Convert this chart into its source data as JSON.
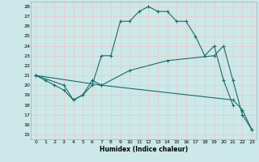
{
  "xlabel": "Humidex (Indice chaleur)",
  "bg_color": "#cce8e8",
  "grid_color": "#b0d8d8",
  "line_color": "#1a6b6b",
  "xlim": [
    -0.5,
    23.5
  ],
  "ylim": [
    14.5,
    28.5
  ],
  "xticks": [
    0,
    1,
    2,
    3,
    4,
    5,
    6,
    7,
    8,
    9,
    10,
    11,
    12,
    13,
    14,
    15,
    16,
    17,
    18,
    19,
    20,
    21,
    22,
    23
  ],
  "yticks": [
    15,
    16,
    17,
    18,
    19,
    20,
    21,
    22,
    23,
    24,
    25,
    26,
    27,
    28
  ],
  "lines": [
    {
      "x": [
        0,
        1,
        2,
        3,
        4,
        5,
        6,
        7,
        8,
        9,
        10,
        11,
        12,
        13,
        14,
        15,
        16,
        17,
        18,
        19,
        20,
        21
      ],
      "y": [
        21,
        20.5,
        20,
        19.5,
        18.5,
        19,
        20,
        23,
        23,
        26.5,
        26.5,
        27.5,
        28,
        27.5,
        27.5,
        26.5,
        26.5,
        25,
        23,
        24,
        20.5,
        18
      ]
    },
    {
      "x": [
        0,
        3,
        4,
        5,
        6,
        7,
        21,
        22,
        23
      ],
      "y": [
        21,
        20,
        18.5,
        19,
        20.5,
        20,
        18.5,
        17.5,
        15.5
      ]
    },
    {
      "x": [
        0,
        7,
        10,
        14,
        19,
        20,
        21,
        22,
        23
      ],
      "y": [
        21,
        20,
        21.5,
        22.5,
        23,
        24,
        20.5,
        17,
        15.5
      ]
    }
  ]
}
